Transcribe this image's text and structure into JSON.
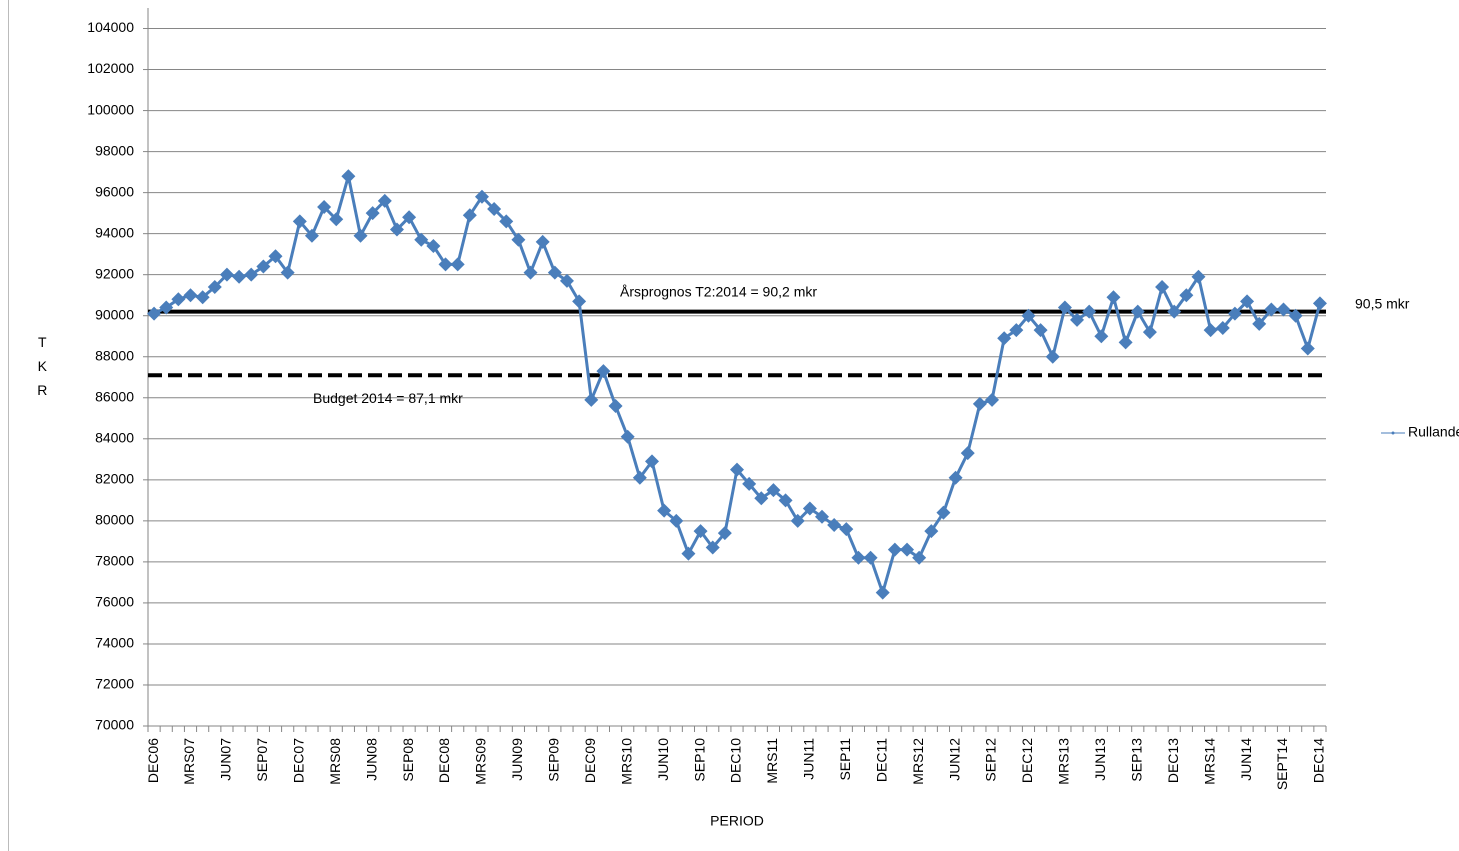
{
  "chart_data": {
    "type": "line",
    "x_label": "PERIOD",
    "y_label": "TKR",
    "categories": [
      "DEC06",
      null,
      null,
      "MRS07",
      null,
      null,
      "JUN07",
      null,
      null,
      "SEP07",
      null,
      null,
      "DEC07",
      null,
      null,
      "MRS08",
      null,
      null,
      "JUN08",
      null,
      null,
      "SEP08",
      null,
      null,
      "DEC08",
      null,
      null,
      "MRS09",
      null,
      null,
      "JUN09",
      null,
      null,
      "SEP09",
      null,
      null,
      "DEC09",
      null,
      null,
      "MRS10",
      null,
      null,
      "JUN10",
      null,
      null,
      "SEP10",
      null,
      null,
      "DEC10",
      null,
      null,
      "MRS11",
      null,
      null,
      "JUN11",
      null,
      null,
      "SEP11",
      null,
      null,
      "DEC11",
      null,
      null,
      "MRS12",
      null,
      null,
      "JUN12",
      null,
      null,
      "SEP12",
      null,
      null,
      "DEC12",
      null,
      null,
      "MRS13",
      null,
      null,
      "JUN13",
      null,
      null,
      "SEP13",
      null,
      null,
      "DEC13",
      null,
      null,
      "MRS14",
      null,
      null,
      "JUN14",
      null,
      null,
      "SEPT14",
      null,
      null,
      "DEC14"
    ],
    "series": [
      {
        "name": "Rullande årsvärdet",
        "color": "#4a7ebb",
        "values": [
          90100,
          90400,
          90800,
          91000,
          90900,
          91400,
          92000,
          91900,
          92000,
          92400,
          92900,
          92100,
          94600,
          93900,
          95300,
          94700,
          96800,
          93900,
          95000,
          95600,
          94200,
          94800,
          93700,
          93400,
          92500,
          92500,
          94900,
          95800,
          95200,
          94600,
          93700,
          92100,
          93600,
          92100,
          91700,
          90700,
          85900,
          87300,
          85600,
          84100,
          82100,
          82900,
          80500,
          80000,
          78400,
          79500,
          78700,
          79400,
          82500,
          81800,
          81100,
          81500,
          81000,
          80000,
          80600,
          80200,
          79800,
          79600,
          78200,
          78200,
          76500,
          78600,
          78600,
          78200,
          79500,
          80400,
          82100,
          83300,
          85700,
          85900,
          88900,
          89300,
          90000,
          89300,
          88000,
          90400,
          89800,
          90200,
          89000,
          90900,
          88700,
          90200,
          89200,
          91400,
          90200,
          91000,
          91900,
          89300,
          89400,
          90100,
          90700,
          89600,
          90300,
          90300,
          90000,
          88400,
          90600
        ]
      }
    ],
    "reference_lines": [
      {
        "value": 90200,
        "label": "Årsprognos  T2:2014 = 90,2 mkr",
        "style": "solid",
        "color": "#000000"
      },
      {
        "value": 87100,
        "label": "Budget  2014 = 87,1 mkr",
        "style": "dashed",
        "color": "#000000"
      }
    ],
    "annotations": [
      "90,5  mkr"
    ],
    "ylim": [
      70000,
      105000
    ],
    "yticks": [
      70000,
      72000,
      74000,
      76000,
      78000,
      80000,
      82000,
      84000,
      86000,
      88000,
      90000,
      92000,
      94000,
      96000,
      98000,
      100000,
      102000,
      104000
    ],
    "grid": true,
    "legend": "right"
  }
}
